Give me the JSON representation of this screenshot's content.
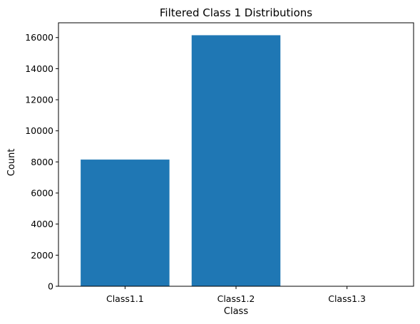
{
  "chart_data": {
    "type": "bar",
    "title": "Filtered Class 1 Distributions",
    "xlabel": "Class",
    "ylabel": "Count",
    "categories": [
      "Class1.1",
      "Class1.2",
      "Class1.3"
    ],
    "values": [
      8150,
      16150,
      0
    ],
    "ylim": [
      0,
      16950
    ],
    "yticks": [
      0,
      2000,
      4000,
      6000,
      8000,
      10000,
      12000,
      14000,
      16000
    ],
    "grid": false,
    "bar_color": "#1f77b4"
  }
}
